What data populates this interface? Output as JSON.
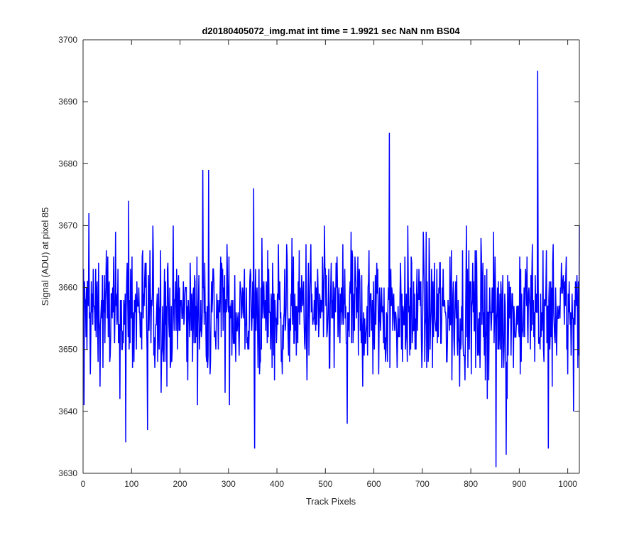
{
  "chart_data": {
    "type": "line",
    "title": "d20180405072_img.mat int time = 1.9921 sec  NaN nm BS04",
    "xlabel": "Track Pixels",
    "ylabel": "Signal (ADU) at pixel 85",
    "xlim": [
      0,
      1024
    ],
    "ylim": [
      3630,
      3700
    ],
    "xticks": [
      0,
      100,
      200,
      300,
      400,
      500,
      600,
      700,
      800,
      900,
      1000
    ],
    "yticks": [
      3630,
      3640,
      3650,
      3660,
      3670,
      3680,
      3690,
      3700
    ],
    "grid": false,
    "line_color": "#0000ff",
    "series": [
      {
        "x_start": 1,
        "x_step": 1,
        "values_summary": {
          "baseline": 3656,
          "noise_amplitude": 7,
          "count": 1024
        },
        "notable_points": [
          {
            "x": 2,
            "y": 3641
          },
          {
            "x": 12,
            "y": 3672
          },
          {
            "x": 88,
            "y": 3635
          },
          {
            "x": 94,
            "y": 3674
          },
          {
            "x": 133,
            "y": 3637
          },
          {
            "x": 247,
            "y": 3679
          },
          {
            "x": 259,
            "y": 3679
          },
          {
            "x": 352,
            "y": 3676
          },
          {
            "x": 354,
            "y": 3634
          },
          {
            "x": 545,
            "y": 3638
          },
          {
            "x": 632,
            "y": 3685
          },
          {
            "x": 852,
            "y": 3631
          },
          {
            "x": 873,
            "y": 3633
          },
          {
            "x": 938,
            "y": 3695
          },
          {
            "x": 960,
            "y": 3634
          },
          {
            "x": 1012,
            "y": 3640
          },
          {
            "x": 1024,
            "y": 3670
          }
        ]
      }
    ]
  }
}
